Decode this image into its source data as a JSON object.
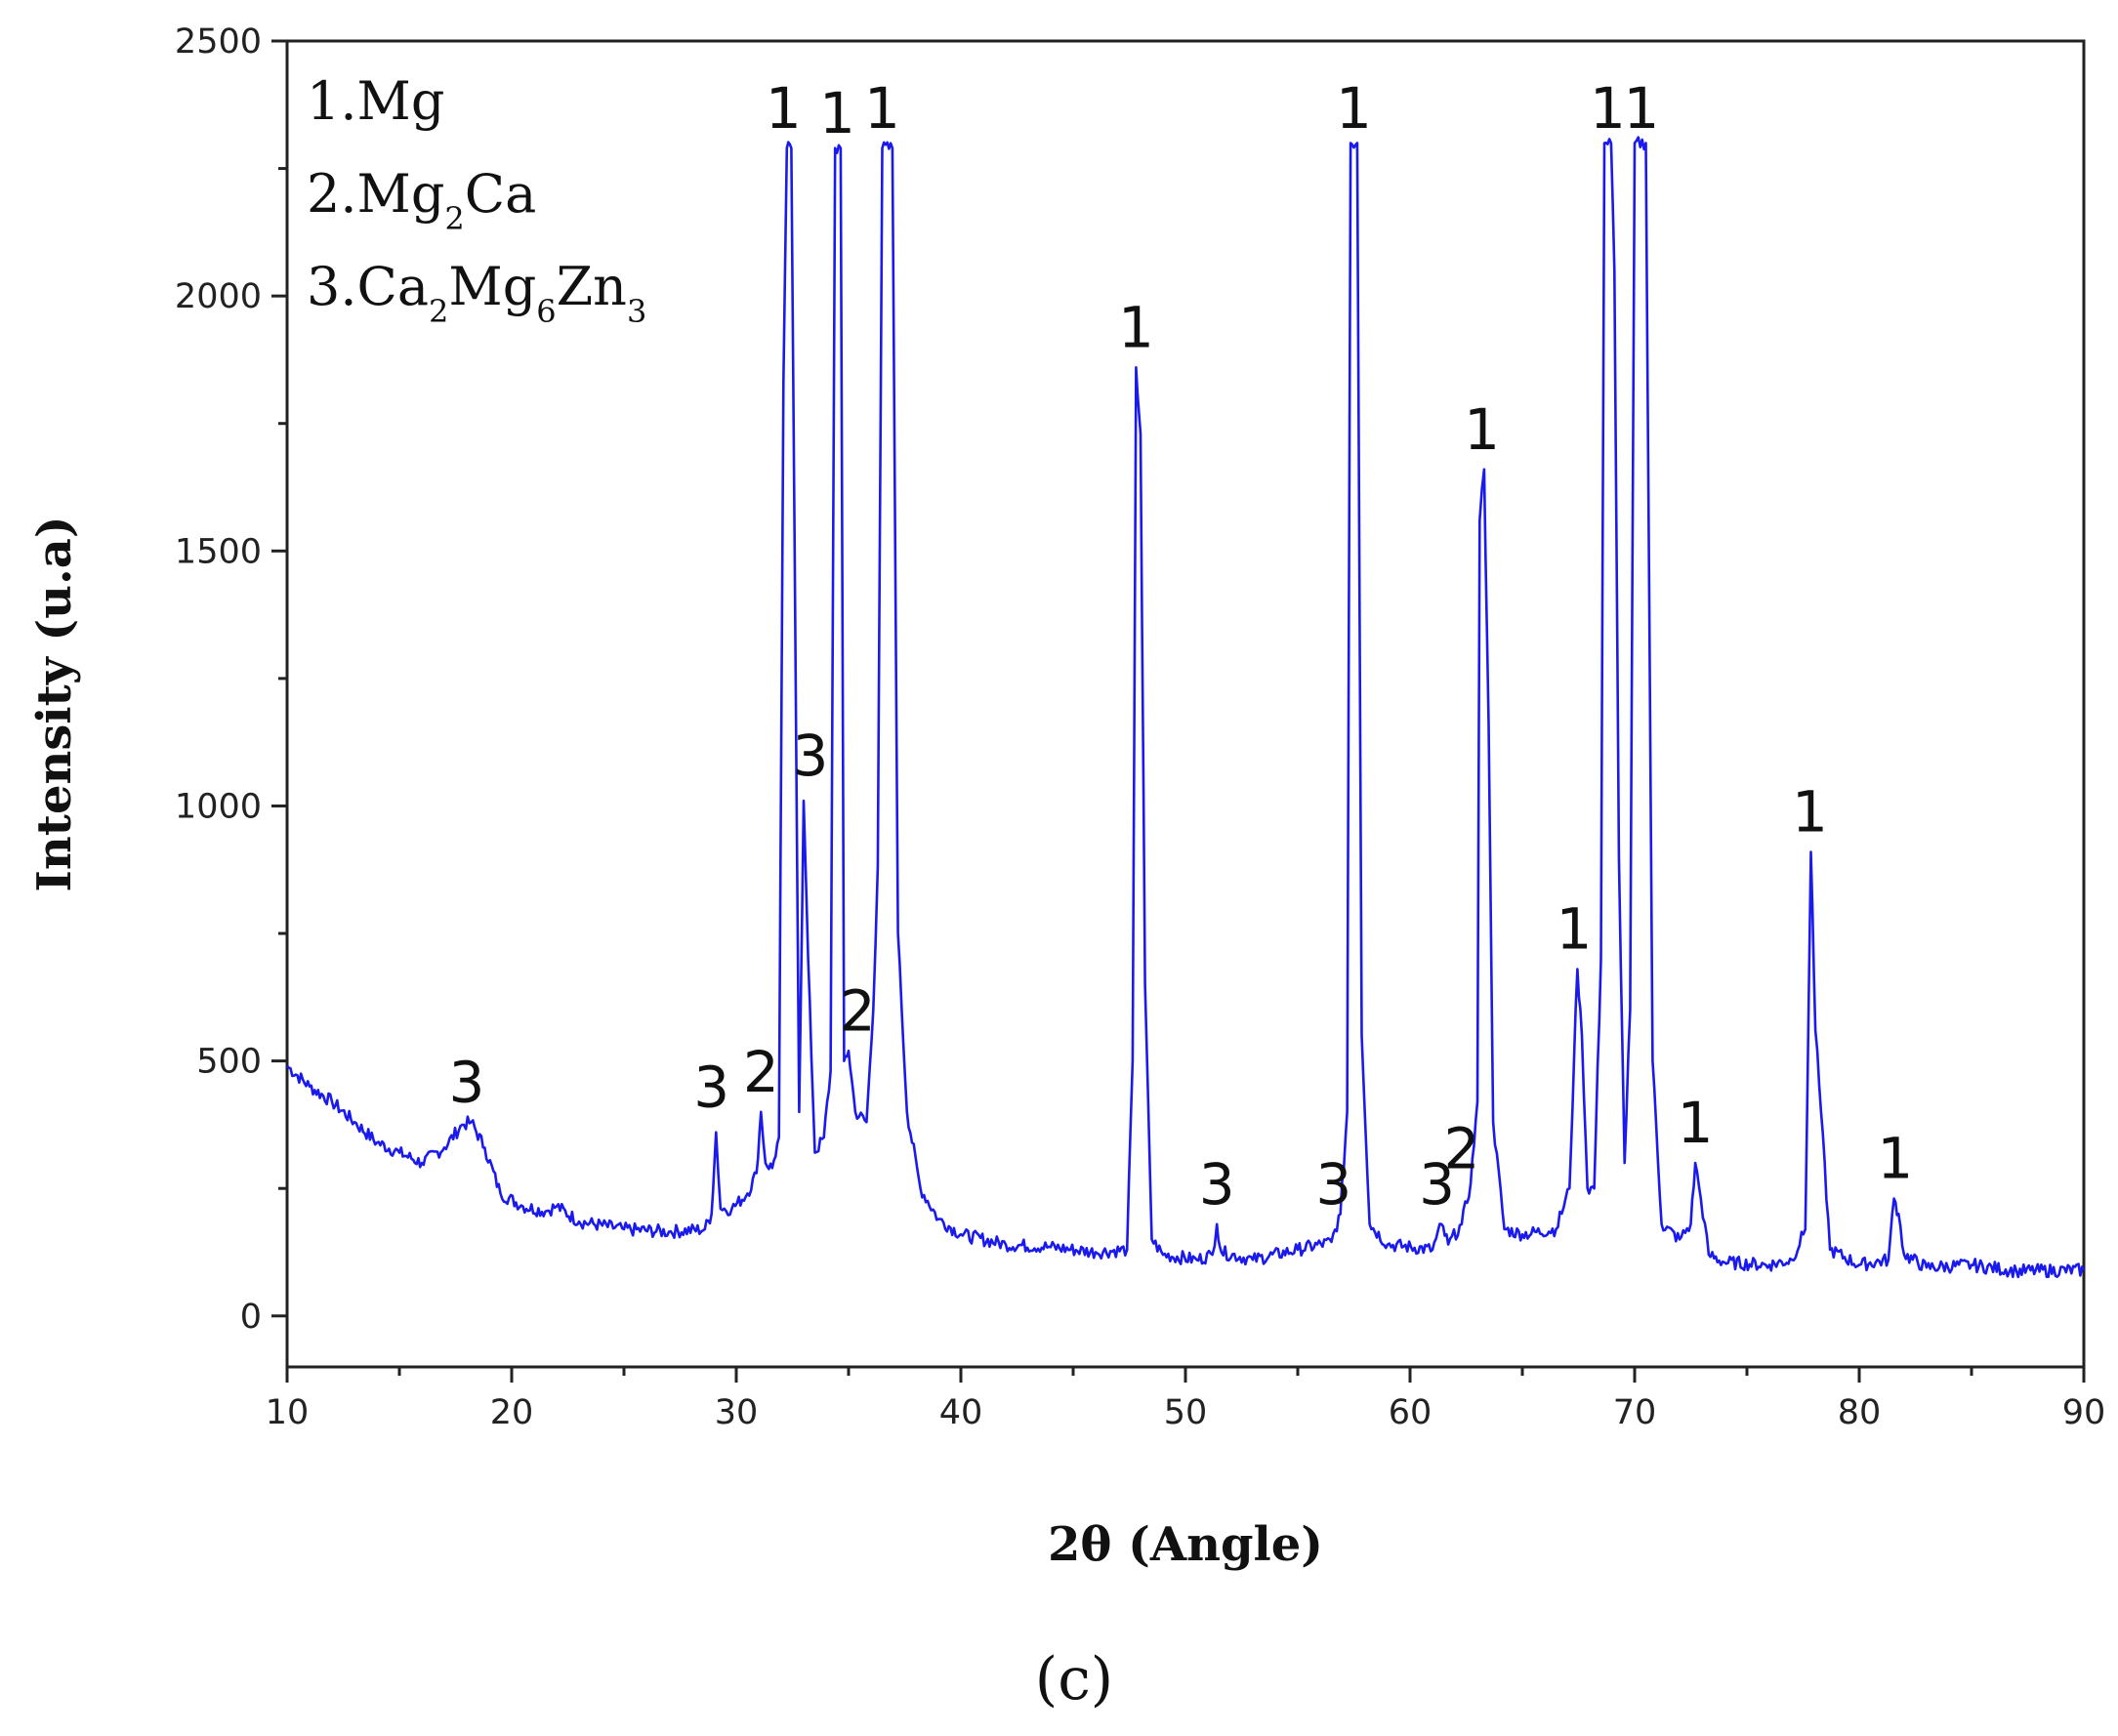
{
  "chart_data": {
    "type": "line",
    "xlabel": "2θ (Angle)",
    "ylabel": "Intensity (u.a)",
    "xlim": [
      10,
      90
    ],
    "ylim": [
      -100,
      2500
    ],
    "x_ticks": [
      10,
      20,
      30,
      40,
      50,
      60,
      70,
      80,
      90
    ],
    "y_ticks": [
      0,
      500,
      1000,
      1500,
      2000,
      2500
    ],
    "grid": false,
    "line_color": "#1a1aee",
    "caption": "(c)",
    "legend": {
      "placement": "top-left",
      "items": [
        {
          "prefix": "1.",
          "parts": [
            {
              "t": "Mg"
            }
          ]
        },
        {
          "prefix": "2.",
          "parts": [
            {
              "t": "Mg"
            },
            {
              "t": "2",
              "sub": true
            },
            {
              "t": "Ca"
            }
          ]
        },
        {
          "prefix": "3.",
          "parts": [
            {
              "t": "Ca"
            },
            {
              "t": "2",
              "sub": true
            },
            {
              "t": "Mg"
            },
            {
              "t": "6",
              "sub": true
            },
            {
              "t": "Zn"
            },
            {
              "t": "3",
              "sub": true
            }
          ]
        }
      ]
    },
    "series": [
      {
        "points": [
          [
            10,
            490
          ],
          [
            11,
            450
          ],
          [
            12,
            420
          ],
          [
            13,
            380
          ],
          [
            14,
            340
          ],
          [
            15,
            320
          ],
          [
            16,
            300
          ],
          [
            17,
            330
          ],
          [
            17.8,
            375
          ],
          [
            18.2,
            380
          ],
          [
            18.8,
            330
          ],
          [
            19.5,
            240
          ],
          [
            20.5,
            215
          ],
          [
            21.5,
            205
          ],
          [
            22,
            215
          ],
          [
            23,
            185
          ],
          [
            25,
            170
          ],
          [
            27,
            165
          ],
          [
            28.6,
            170
          ],
          [
            28.9,
            200
          ],
          [
            29.1,
            360
          ],
          [
            29.3,
            210
          ],
          [
            29.8,
            210
          ],
          [
            30.5,
            240
          ],
          [
            30.9,
            280
          ],
          [
            31.1,
            400
          ],
          [
            31.3,
            300
          ],
          [
            31.6,
            290
          ],
          [
            31.9,
            350
          ],
          [
            32.1,
            1830
          ],
          [
            32.25,
            2290
          ],
          [
            32.45,
            2290
          ],
          [
            32.6,
            1500
          ],
          [
            32.8,
            400
          ],
          [
            33.0,
            1010
          ],
          [
            33.2,
            700
          ],
          [
            33.5,
            320
          ],
          [
            33.9,
            350
          ],
          [
            34.2,
            480
          ],
          [
            34.4,
            2290
          ],
          [
            34.65,
            2290
          ],
          [
            34.8,
            500
          ],
          [
            35.0,
            520
          ],
          [
            35.3,
            400
          ],
          [
            35.8,
            380
          ],
          [
            36.1,
            600
          ],
          [
            36.3,
            880
          ],
          [
            36.5,
            2290
          ],
          [
            36.95,
            2290
          ],
          [
            37.2,
            750
          ],
          [
            37.6,
            400
          ],
          [
            38.2,
            250
          ],
          [
            39,
            190
          ],
          [
            40,
            160
          ],
          [
            42,
            140
          ],
          [
            44,
            135
          ],
          [
            46,
            125
          ],
          [
            47.4,
            130
          ],
          [
            47.65,
            500
          ],
          [
            47.8,
            1860
          ],
          [
            48.0,
            1730
          ],
          [
            48.2,
            650
          ],
          [
            48.5,
            150
          ],
          [
            49,
            120
          ],
          [
            50.5,
            110
          ],
          [
            51.2,
            120
          ],
          [
            51.4,
            180
          ],
          [
            51.6,
            125
          ],
          [
            53,
            110
          ],
          [
            55,
            130
          ],
          [
            56.5,
            145
          ],
          [
            56.9,
            200
          ],
          [
            57.2,
            400
          ],
          [
            57.35,
            2300
          ],
          [
            57.65,
            2300
          ],
          [
            57.85,
            550
          ],
          [
            58.2,
            180
          ],
          [
            59,
            140
          ],
          [
            61,
            130
          ],
          [
            61.4,
            180
          ],
          [
            61.7,
            140
          ],
          [
            62.3,
            180
          ],
          [
            62.7,
            260
          ],
          [
            63.0,
            420
          ],
          [
            63.1,
            1560
          ],
          [
            63.3,
            1660
          ],
          [
            63.5,
            1160
          ],
          [
            63.7,
            380
          ],
          [
            64.2,
            170
          ],
          [
            65,
            160
          ],
          [
            66.5,
            170
          ],
          [
            67.1,
            250
          ],
          [
            67.3,
            500
          ],
          [
            67.45,
            680
          ],
          [
            67.65,
            550
          ],
          [
            67.9,
            250
          ],
          [
            68.2,
            250
          ],
          [
            68.5,
            700
          ],
          [
            68.65,
            2300
          ],
          [
            68.95,
            2300
          ],
          [
            69.1,
            2050
          ],
          [
            69.3,
            900
          ],
          [
            69.55,
            300
          ],
          [
            69.8,
            600
          ],
          [
            70.0,
            2300
          ],
          [
            70.5,
            2300
          ],
          [
            70.8,
            500
          ],
          [
            71.2,
            180
          ],
          [
            72,
            150
          ],
          [
            72.5,
            180
          ],
          [
            72.7,
            300
          ],
          [
            72.95,
            230
          ],
          [
            73.3,
            120
          ],
          [
            74,
            105
          ],
          [
            76,
            100
          ],
          [
            77,
            110
          ],
          [
            77.6,
            170
          ],
          [
            77.85,
            910
          ],
          [
            78.05,
            560
          ],
          [
            78.3,
            400
          ],
          [
            78.7,
            130
          ],
          [
            80,
            100
          ],
          [
            81.3,
            110
          ],
          [
            81.55,
            230
          ],
          [
            81.75,
            200
          ],
          [
            82,
            120
          ],
          [
            83,
            95
          ],
          [
            85,
            100
          ],
          [
            87,
            88
          ],
          [
            90,
            90
          ]
        ]
      }
    ],
    "annotations": [
      {
        "text": "3",
        "x": 18.0,
        "y": 420
      },
      {
        "text": "3",
        "x": 28.9,
        "y": 410
      },
      {
        "text": "2",
        "x": 31.1,
        "y": 440
      },
      {
        "text": "1",
        "x": 32.1,
        "y": 2330
      },
      {
        "text": "3",
        "x": 33.3,
        "y": 1060
      },
      {
        "text": "1",
        "x": 34.5,
        "y": 2320
      },
      {
        "text": "2",
        "x": 35.4,
        "y": 560
      },
      {
        "text": "1",
        "x": 36.5,
        "y": 2330
      },
      {
        "text": "1",
        "x": 47.8,
        "y": 1900
      },
      {
        "text": "3",
        "x": 51.4,
        "y": 220
      },
      {
        "text": "1",
        "x": 57.5,
        "y": 2330
      },
      {
        "text": "3",
        "x": 56.6,
        "y": 220
      },
      {
        "text": "3",
        "x": 61.2,
        "y": 220
      },
      {
        "text": "2",
        "x": 62.3,
        "y": 290
      },
      {
        "text": "1",
        "x": 63.2,
        "y": 1700
      },
      {
        "text": "1",
        "x": 67.3,
        "y": 720
      },
      {
        "text": "1",
        "x": 68.8,
        "y": 2330
      },
      {
        "text": "1",
        "x": 70.3,
        "y": 2330
      },
      {
        "text": "1",
        "x": 72.7,
        "y": 340
      },
      {
        "text": "1",
        "x": 77.8,
        "y": 950
      },
      {
        "text": "1",
        "x": 81.6,
        "y": 270
      }
    ]
  }
}
